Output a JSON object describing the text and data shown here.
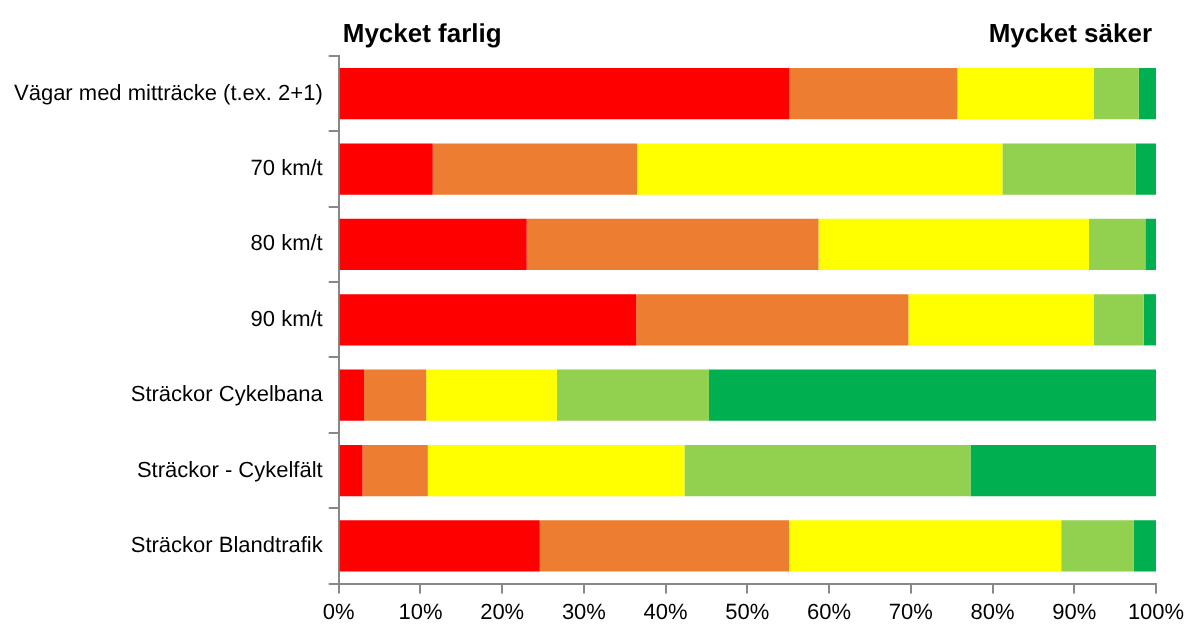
{
  "chart_data": {
    "type": "bar",
    "orientation": "horizontal",
    "stacked": true,
    "categories": [
      "Vägar med mitträcke (t.ex. 2+1)",
      "70 km/t",
      "80 km/t",
      "90 km/t",
      "Sträckor Cykelbana",
      "Sträckor - Cykelfält",
      "Sträckor Blandtrafik"
    ],
    "series": [
      {
        "color": "#ff0000",
        "values": [
          55.1,
          11.5,
          23.0,
          36.4,
          3.1,
          2.9,
          24.6
        ]
      },
      {
        "color": "#ed7d31",
        "values": [
          20.6,
          25.0,
          35.7,
          33.3,
          7.6,
          8.0,
          30.5
        ]
      },
      {
        "color": "#ffff00",
        "values": [
          16.7,
          44.7,
          33.1,
          22.7,
          16.0,
          31.4,
          33.3
        ]
      },
      {
        "color": "#92d050",
        "values": [
          5.5,
          16.3,
          6.9,
          6.1,
          18.6,
          35.0,
          8.9
        ]
      },
      {
        "color": "#00b050",
        "values": [
          2.1,
          2.5,
          1.3,
          1.5,
          54.7,
          22.7,
          2.7
        ]
      }
    ],
    "xlim": [
      0,
      100
    ],
    "xticks": [
      {
        "value": 0,
        "label": "0%"
      },
      {
        "value": 10,
        "label": "10%"
      },
      {
        "value": 20,
        "label": "20%"
      },
      {
        "value": 30,
        "label": "30%"
      },
      {
        "value": 40,
        "label": "40%"
      },
      {
        "value": 50,
        "label": "50%"
      },
      {
        "value": 60,
        "label": "60%"
      },
      {
        "value": 70,
        "label": "70%"
      },
      {
        "value": 80,
        "label": "80%"
      },
      {
        "value": 90,
        "label": "90%"
      },
      {
        "value": 100,
        "label": "100%"
      }
    ],
    "annotations": [
      "Mycket farlig",
      "Mycket säker"
    ],
    "grid": false,
    "legend": false
  }
}
